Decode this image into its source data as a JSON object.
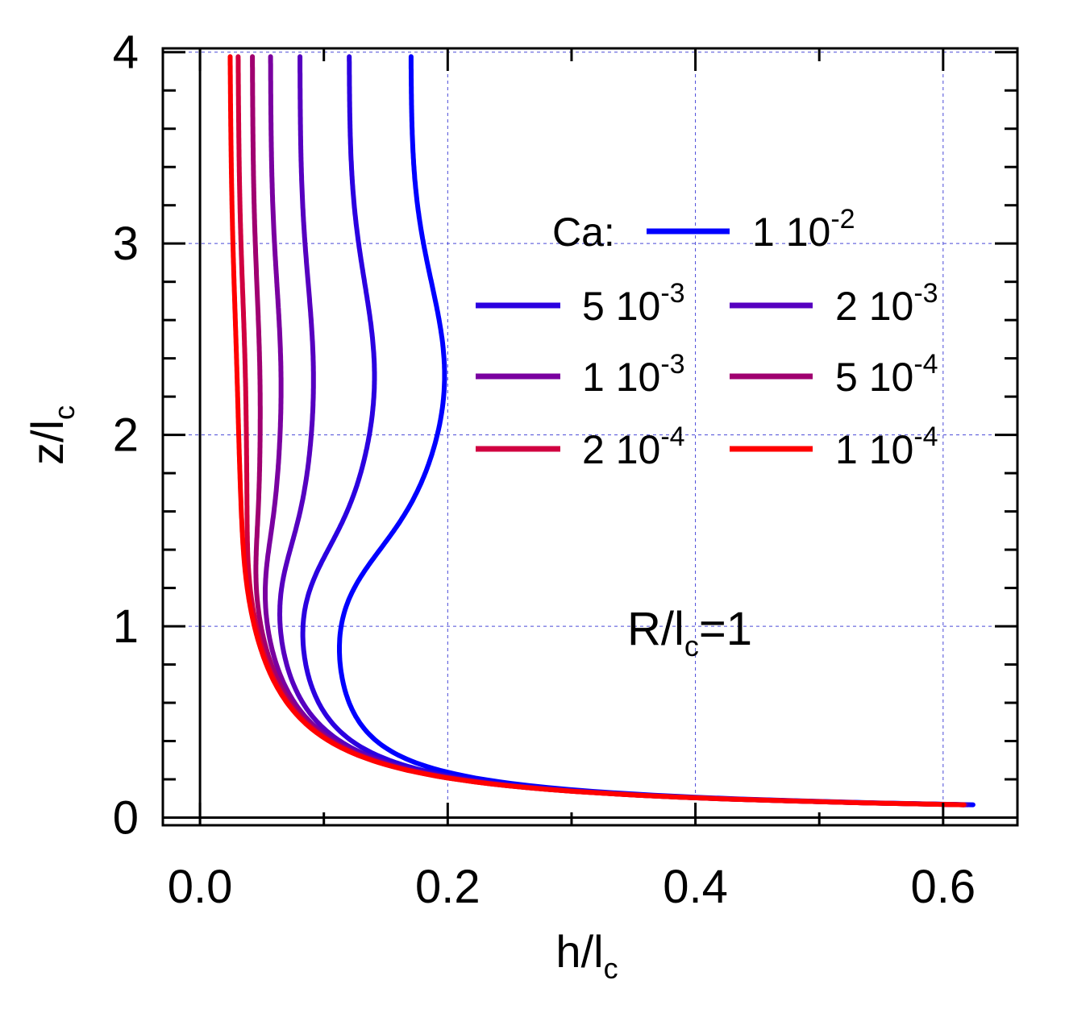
{
  "chart_data": {
    "type": "line",
    "title": "",
    "xlabel": "h/l",
    "xlabel_sub": "c",
    "ylabel": "z/l",
    "ylabel_sub": "c",
    "xlim": [
      -0.03,
      0.66
    ],
    "ylim": [
      -0.04,
      4.02
    ],
    "xticks": [
      0.0,
      0.2,
      0.4,
      0.6
    ],
    "xtick_labels": [
      "0.0",
      "0.2",
      "0.4",
      "0.6"
    ],
    "yticks": [
      0,
      1,
      2,
      3,
      4
    ],
    "ytick_labels": [
      "0",
      "1",
      "2",
      "3",
      "4"
    ],
    "grid": true,
    "annotation": {
      "main": "R/l",
      "sub": "c",
      "tail": "=1"
    },
    "legend": {
      "title": "Ca:",
      "placement": "center-right"
    },
    "series": [
      {
        "name": "1 10",
        "exp": "-2",
        "color": "#0000ff",
        "hinf": 0.17,
        "hmin": 0.098,
        "hbulge": 0.197
      },
      {
        "name": "5 10",
        "exp": "-3",
        "color": "#2b00e0",
        "hinf": 0.12,
        "hmin": 0.066,
        "hbulge": 0.14
      },
      {
        "name": "2 10",
        "exp": "-3",
        "color": "#5600c0",
        "hinf": 0.08,
        "hmin": 0.046,
        "hbulge": 0.09
      },
      {
        "name": "1 10",
        "exp": "-3",
        "color": "#7a00a0",
        "hinf": 0.056,
        "hmin": 0.033,
        "hbulge": 0.063
      },
      {
        "name": "5 10",
        "exp": "-4",
        "color": "#a00070",
        "hinf": 0.041,
        "hmin": 0.025,
        "hbulge": 0.045
      },
      {
        "name": "2 10",
        "exp": "-4",
        "color": "#d00040",
        "hinf": 0.029,
        "hmin": 0.018,
        "hbulge": 0.032
      },
      {
        "name": "1 10",
        "exp": "-4",
        "color": "#ff0000",
        "hinf": 0.022,
        "hmin": 0.014,
        "hbulge": 0.024
      }
    ]
  }
}
